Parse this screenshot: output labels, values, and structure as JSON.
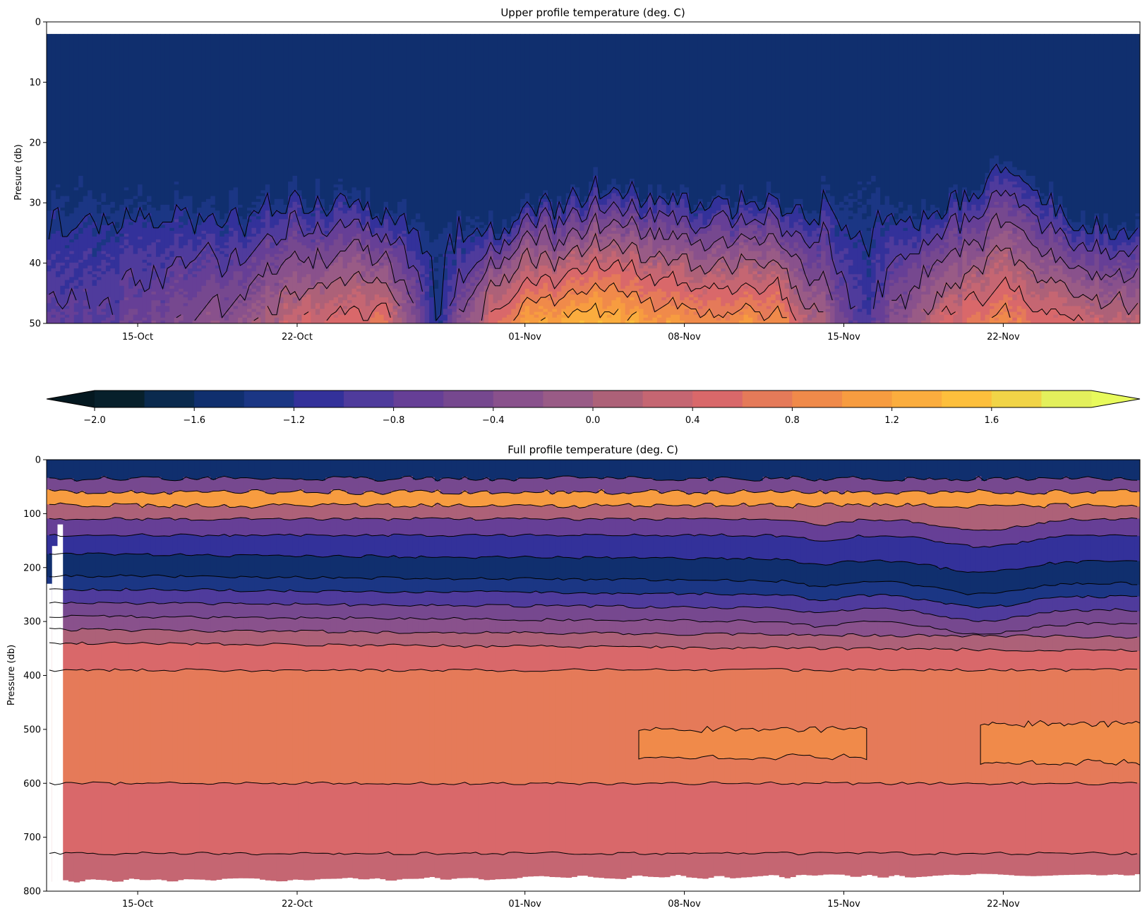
{
  "chart_data": [
    {
      "type": "heatmap",
      "subtype": "filled-contour",
      "title": "Upper profile temperature (deg. C)",
      "xlabel": "",
      "ylabel": "Presure (db)",
      "x_range": [
        "2023-10-11",
        "2023-11-28"
      ],
      "ylim": [
        50,
        0
      ],
      "y_inverted": true,
      "x_tick_labels": [
        "15-Oct",
        "22-Oct",
        "01-Nov",
        "08-Nov",
        "15-Nov",
        "22-Nov"
      ],
      "y_tick_labels": [
        "0",
        "10",
        "20",
        "30",
        "40",
        "50"
      ],
      "surface_layer": {
        "pressure_top_db": 2,
        "temperature_c": -1.5
      },
      "samples_at_50db": {
        "dates": [
          "2023-10-11",
          "2023-10-15",
          "2023-10-19",
          "2023-10-22",
          "2023-10-26",
          "2023-10-28",
          "2023-10-30",
          "2023-11-01",
          "2023-11-04",
          "2023-11-08",
          "2023-11-12",
          "2023-11-16",
          "2023-11-19",
          "2023-11-22",
          "2023-11-26"
        ],
        "temperature_c": [
          -0.9,
          -0.6,
          -0.2,
          0.4,
          0.6,
          -1.2,
          0.2,
          1.2,
          1.4,
          1.0,
          1.0,
          -1.0,
          0.4,
          0.9,
          0.3
        ]
      },
      "isotherm_top_db": {
        "dates": [
          "2023-10-11",
          "2023-10-15",
          "2023-10-19",
          "2023-10-22",
          "2023-10-26",
          "2023-10-30",
          "2023-11-04",
          "2023-11-08",
          "2023-11-12",
          "2023-11-16",
          "2023-11-19",
          "2023-11-22",
          "2023-11-26"
        ],
        "pressure_db": [
          27,
          28,
          30,
          27,
          30,
          33,
          27,
          28,
          29,
          28,
          31,
          24,
          33
        ]
      }
    },
    {
      "type": "heatmap",
      "subtype": "filled-contour",
      "title": "Full profile temperature (deg. C)",
      "xlabel": "",
      "ylabel": "Pressure (db)",
      "x_range": [
        "2023-10-11",
        "2023-11-28"
      ],
      "ylim": [
        800,
        0
      ],
      "y_inverted": true,
      "x_tick_labels": [
        "15-Oct",
        "22-Oct",
        "01-Nov",
        "08-Nov",
        "15-Nov",
        "22-Nov"
      ],
      "y_tick_labels": [
        "0",
        "100",
        "200",
        "300",
        "400",
        "500",
        "600",
        "700",
        "800"
      ],
      "layer_pressure_db": [
        0,
        35,
        60,
        85,
        110,
        140,
        175,
        215,
        240,
        265,
        290,
        315,
        340,
        390,
        600,
        730,
        780
      ],
      "layer_temperature_c": [
        -1.5,
        -0.6,
        1.0,
        0.1,
        -0.8,
        -1.2,
        -1.5,
        -1.3,
        -0.9,
        -0.6,
        -0.3,
        0.1,
        0.4,
        0.7,
        0.5,
        0.3
      ],
      "warm_core_patches_c": 0.9,
      "contour_levels_c": [
        -1.6,
        -1.2,
        -0.8,
        -0.4,
        0.0,
        0.4,
        0.8
      ]
    }
  ],
  "colorbar": {
    "orientation": "horizontal",
    "extend": "both",
    "levels": [
      -2.0,
      -1.8,
      -1.6,
      -1.4,
      -1.2,
      -1.0,
      -0.8,
      -0.6,
      -0.4,
      -0.2,
      0.0,
      0.2,
      0.4,
      0.6,
      0.8,
      1.0,
      1.2,
      1.4,
      1.6,
      1.8
    ],
    "tick_labels": [
      "−2.0",
      "−1.6",
      "−1.2",
      "−0.8",
      "−0.4",
      "0.0",
      "0.4",
      "0.8",
      "1.2",
      "1.6"
    ],
    "colormap": "thermal",
    "colors": [
      "#07202b",
      "#0a2a4e",
      "#102f6e",
      "#1b3684",
      "#33319a",
      "#4f3b9c",
      "#663f96",
      "#76488f",
      "#89518c",
      "#995b86",
      "#ad6178",
      "#c56672",
      "#d9686a",
      "#e57a59",
      "#f08a4a",
      "#f79c40",
      "#fbad3e",
      "#fdbf3c",
      "#f1d447",
      "#e3f05c"
    ],
    "under_color": "#041820",
    "over_color": "#e8fa5c"
  }
}
